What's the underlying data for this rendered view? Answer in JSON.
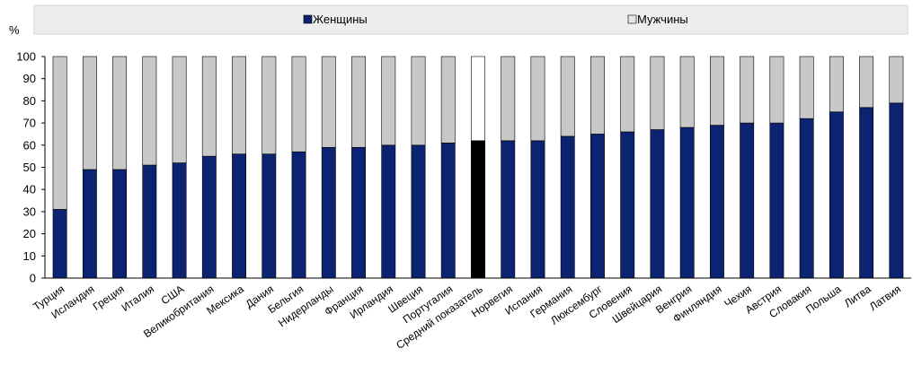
{
  "chart_data": {
    "type": "bar",
    "stacked": true,
    "percent_stacked": true,
    "ylabel": "%",
    "ylim": [
      0,
      100
    ],
    "yticks": [
      0,
      10,
      20,
      30,
      40,
      50,
      60,
      70,
      80,
      90,
      100
    ],
    "grid": false,
    "legend_position": "top",
    "categories": [
      "Турция",
      "Исландия",
      "Греция",
      "Италия",
      "США",
      "Великобритания",
      "Мексика",
      "Дания",
      "Бельгия",
      "Нидерланды",
      "Франция",
      "Ирландия",
      "Швеция",
      "Португалия",
      "Средний показатель",
      "Норвегия",
      "Испания",
      "Германия",
      "Люксембург",
      "Словения",
      "Швейцария",
      "Венгрия",
      "Финляндия",
      "Чехия",
      "Австрия",
      "Словакия",
      "Польша",
      "Литва",
      "Латвия"
    ],
    "highlight_category": "Средний показатель",
    "series": [
      {
        "name": "Женщины",
        "color": "#0b2370",
        "highlight_color": "#000000",
        "values": [
          31,
          49,
          49,
          51,
          52,
          55,
          56,
          56,
          57,
          59,
          59,
          60,
          60,
          61,
          62,
          62,
          62,
          64,
          65,
          66,
          67,
          68,
          69,
          70,
          70,
          72,
          75,
          77,
          79
        ]
      },
      {
        "name": "Мужчины",
        "color": "#c8c8c8",
        "highlight_color": "#ffffff",
        "values": [
          69,
          51,
          51,
          49,
          48,
          45,
          44,
          44,
          43,
          41,
          41,
          40,
          40,
          39,
          38,
          38,
          38,
          36,
          35,
          34,
          33,
          32,
          31,
          30,
          30,
          28,
          25,
          23,
          21
        ]
      }
    ]
  }
}
